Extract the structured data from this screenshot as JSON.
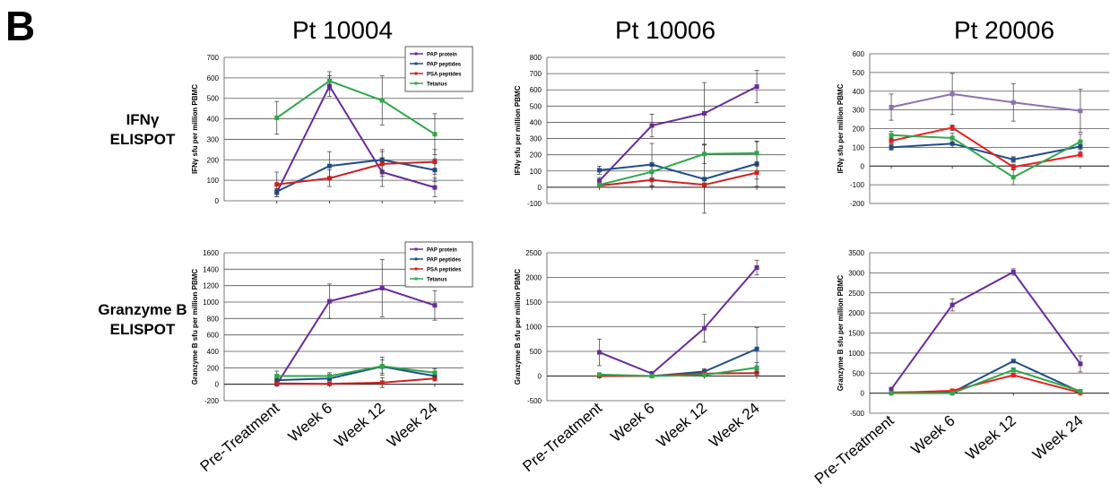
{
  "figure": {
    "panel_letter": "B",
    "column_titles": [
      "Pt 10004",
      "Pt 10006",
      "Pt 20006"
    ],
    "row_labels": [
      {
        "line1": "IFNγ",
        "line2": "ELISPOT"
      },
      {
        "line1": "Granzyme B",
        "line2": "ELISPOT"
      }
    ],
    "x_tick_labels": [
      "Pre-Treatment",
      "Week 6",
      "Week 12",
      "Week 24"
    ]
  },
  "colors": {
    "pap_protein": "#6a2a9c",
    "pap_peptides": "#1f4e8c",
    "psa_peptides": "#cc2222",
    "tetanus": "#2ea84a",
    "pap_protein_20006_ifn": "#8f6fb3",
    "psa_peptides_bright": "#ee1c1c"
  },
  "chart_data": [
    {
      "type": "line",
      "patient": "Pt 10004",
      "assay": "IFNγ ELISPOT",
      "ylabel": "IFNγ sfu per million PBMC",
      "ylim": [
        0,
        700
      ],
      "yticks": [
        0,
        100,
        200,
        300,
        400,
        500,
        600,
        700
      ],
      "categories": [
        "Pre-Treatment",
        "Week 6",
        "Week 12",
        "Week 24"
      ],
      "legend": "top-right",
      "series": [
        {
          "name": "PAP protein",
          "color": "#6a2a9c",
          "values": [
            40,
            560,
            140,
            65
          ],
          "errors": [
            20,
            50,
            70,
            45
          ]
        },
        {
          "name": "PAP peptides",
          "color": "#1f4e8c",
          "values": [
            45,
            170,
            200,
            150
          ],
          "errors": [
            15,
            70,
            50,
            55
          ]
        },
        {
          "name": "PSA peptides",
          "color": "#cc2222",
          "values": [
            80,
            110,
            180,
            190
          ],
          "errors": [
            60,
            40,
            60,
            60
          ]
        },
        {
          "name": "Tetanus",
          "color": "#2ea84a",
          "values": [
            405,
            585,
            490,
            325
          ],
          "errors": [
            80,
            45,
            120,
            100
          ]
        }
      ]
    },
    {
      "type": "line",
      "patient": "Pt 10006",
      "assay": "IFNγ ELISPOT",
      "ylabel": "IFNγ sfu per million PBMC",
      "ylim": [
        -100,
        800
      ],
      "yticks": [
        -100,
        0,
        100,
        200,
        300,
        400,
        500,
        600,
        700,
        800
      ],
      "categories": [
        "Pre-Treatment",
        "Week 6",
        "Week 12",
        "Week 24"
      ],
      "series": [
        {
          "name": "PAP protein",
          "color": "#6a2a9c",
          "values": [
            40,
            380,
            455,
            620
          ],
          "errors": [
            20,
            70,
            190,
            100
          ]
        },
        {
          "name": "PAP peptides",
          "color": "#1f4e8c",
          "values": [
            105,
            140,
            50,
            145
          ],
          "errors": [
            25,
            130,
            210,
            140
          ]
        },
        {
          "name": "PSA peptides",
          "color": "#cc2222",
          "values": [
            10,
            45,
            15,
            90
          ],
          "errors": [
            10,
            40,
            10,
            40
          ]
        },
        {
          "name": "Tetanus",
          "color": "#2ea84a",
          "values": [
            15,
            95,
            205,
            210
          ],
          "errors": [
            10,
            40,
            60,
            70
          ]
        }
      ]
    },
    {
      "type": "line",
      "patient": "Pt 20006",
      "assay": "IFNγ ELISPOT",
      "ylabel": "IFNγ sfu per million PBMC",
      "ylim": [
        -200,
        600
      ],
      "yticks": [
        -200,
        -100,
        0,
        100,
        200,
        300,
        400,
        500,
        600
      ],
      "categories": [
        "Pre-Treatment",
        "Week 6",
        "Week 12",
        "Week 24"
      ],
      "series": [
        {
          "name": "PAP protein",
          "color": "#8f6fb3",
          "values": [
            315,
            385,
            340,
            295
          ],
          "errors": [
            70,
            110,
            100,
            115
          ]
        },
        {
          "name": "PAP peptides",
          "color": "#1f4e8c",
          "values": [
            100,
            120,
            35,
            105
          ],
          "errors": [
            15,
            20,
            15,
            30
          ]
        },
        {
          "name": "PSA peptides",
          "color": "#ee1c1c",
          "values": [
            135,
            205,
            -5,
            60
          ],
          "errors": [
            15,
            15,
            15,
            10
          ]
        },
        {
          "name": "Tetanus",
          "color": "#2ea84a",
          "values": [
            165,
            150,
            -60,
            130
          ],
          "errors": [
            20,
            25,
            40,
            40
          ]
        }
      ]
    },
    {
      "type": "line",
      "patient": "Pt 10004",
      "assay": "Granzyme B ELISPOT",
      "ylabel": "Granzyme B sfu per million PBMC",
      "ylim": [
        -200,
        1600
      ],
      "yticks": [
        -200,
        0,
        200,
        400,
        600,
        800,
        1000,
        1200,
        1400,
        1600
      ],
      "categories": [
        "Pre-Treatment",
        "Week 6",
        "Week 12",
        "Week 24"
      ],
      "legend": "top-right",
      "series": [
        {
          "name": "PAP protein",
          "color": "#6a2a9c",
          "values": [
            0,
            1010,
            1170,
            960
          ],
          "errors": [
            20,
            210,
            350,
            180
          ]
        },
        {
          "name": "PAP peptides",
          "color": "#1f4e8c",
          "values": [
            50,
            70,
            215,
            100
          ],
          "errors": [
            30,
            30,
            80,
            50
          ]
        },
        {
          "name": "PSA peptides",
          "color": "#cc2222",
          "values": [
            10,
            5,
            20,
            70
          ],
          "errors": [
            10,
            5,
            60,
            30
          ]
        },
        {
          "name": "Tetanus",
          "color": "#2ea84a",
          "values": [
            100,
            100,
            220,
            140
          ],
          "errors": [
            60,
            40,
            110,
            50
          ]
        }
      ]
    },
    {
      "type": "line",
      "patient": "Pt 10006",
      "assay": "Granzyme B ELISPOT",
      "ylabel": "Granzyme B sfu per million PBMC",
      "ylim": [
        -500,
        2500
      ],
      "yticks": [
        -500,
        0,
        500,
        1000,
        1500,
        2000,
        2500
      ],
      "categories": [
        "Pre-Treatment",
        "Week 6",
        "Week 12",
        "Week 24"
      ],
      "series": [
        {
          "name": "PAP protein",
          "color": "#6a2a9c",
          "values": [
            480,
            50,
            970,
            2200
          ],
          "errors": [
            270,
            40,
            280,
            150
          ]
        },
        {
          "name": "PAP peptides",
          "color": "#1f4e8c",
          "values": [
            10,
            0,
            90,
            550
          ],
          "errors": [
            10,
            10,
            60,
            430
          ]
        },
        {
          "name": "PSA peptides",
          "color": "#cc2222",
          "values": [
            0,
            0,
            50,
            60
          ],
          "errors": [
            10,
            10,
            30,
            30
          ]
        },
        {
          "name": "Tetanus",
          "color": "#2ea84a",
          "values": [
            30,
            0,
            20,
            170
          ],
          "errors": [
            20,
            10,
            20,
            100
          ]
        }
      ]
    },
    {
      "type": "line",
      "patient": "Pt 20006",
      "assay": "Granzyme B ELISPOT",
      "ylabel": "Granzyme B sfu per million PBMC",
      "ylim": [
        -500,
        3500
      ],
      "yticks": [
        -500,
        0,
        500,
        1000,
        1500,
        2000,
        2500,
        3000,
        3500
      ],
      "categories": [
        "Pre-Treatment",
        "Week 6",
        "Week 12",
        "Week 24"
      ],
      "series": [
        {
          "name": "PAP protein",
          "color": "#6a2a9c",
          "values": [
            100,
            2200,
            3020,
            730
          ],
          "errors": [
            40,
            150,
            80,
            200
          ]
        },
        {
          "name": "PAP peptides",
          "color": "#1f4e8c",
          "values": [
            20,
            20,
            800,
            30
          ],
          "errors": [
            10,
            10,
            40,
            10
          ]
        },
        {
          "name": "PSA peptides",
          "color": "#ee1c1c",
          "values": [
            10,
            60,
            450,
            10
          ],
          "errors": [
            10,
            20,
            30,
            10
          ]
        },
        {
          "name": "Tetanus",
          "color": "#2ea84a",
          "values": [
            0,
            0,
            580,
            50
          ],
          "errors": [
            10,
            10,
            50,
            20
          ]
        }
      ]
    }
  ]
}
